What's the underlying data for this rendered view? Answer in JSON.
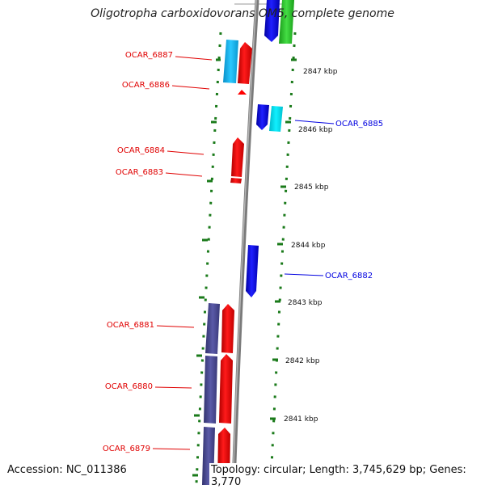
{
  "title": "Oligotropha carboxidovorans OM5, complete genome",
  "footer": {
    "accession": "Accession: NC_011386",
    "summary": "Topology: circular; Length: 3,745,629 bp; Genes: 3,770"
  },
  "colors": {
    "forward_gene": "#ff0000",
    "reverse_gene": "#1010ff",
    "rna_cyan": "#1ab8f0",
    "rna_cyan_light": "#00e0f0",
    "green_gene": "#33cc33",
    "purple_gene": "#4a4a9a",
    "backbone": "#888888",
    "tick_green": "#1a7a1a"
  },
  "ticks": [
    {
      "label": "2847 kbp"
    },
    {
      "label": "2846 kbp"
    },
    {
      "label": "2845 kbp"
    },
    {
      "label": "2844 kbp"
    },
    {
      "label": "2843 kbp"
    },
    {
      "label": "2842 kbp"
    },
    {
      "label": "2841 kbp"
    }
  ],
  "labels": {
    "left": [
      {
        "text": "OCAR_6887"
      },
      {
        "text": "OCAR_6886"
      },
      {
        "text": "OCAR_6884"
      },
      {
        "text": "OCAR_6883"
      },
      {
        "text": "OCAR_6881"
      },
      {
        "text": "OCAR_6880"
      },
      {
        "text": "OCAR_6879"
      }
    ],
    "right": [
      {
        "text": "OCAR_6885"
      },
      {
        "text": "OCAR_6882"
      }
    ]
  }
}
